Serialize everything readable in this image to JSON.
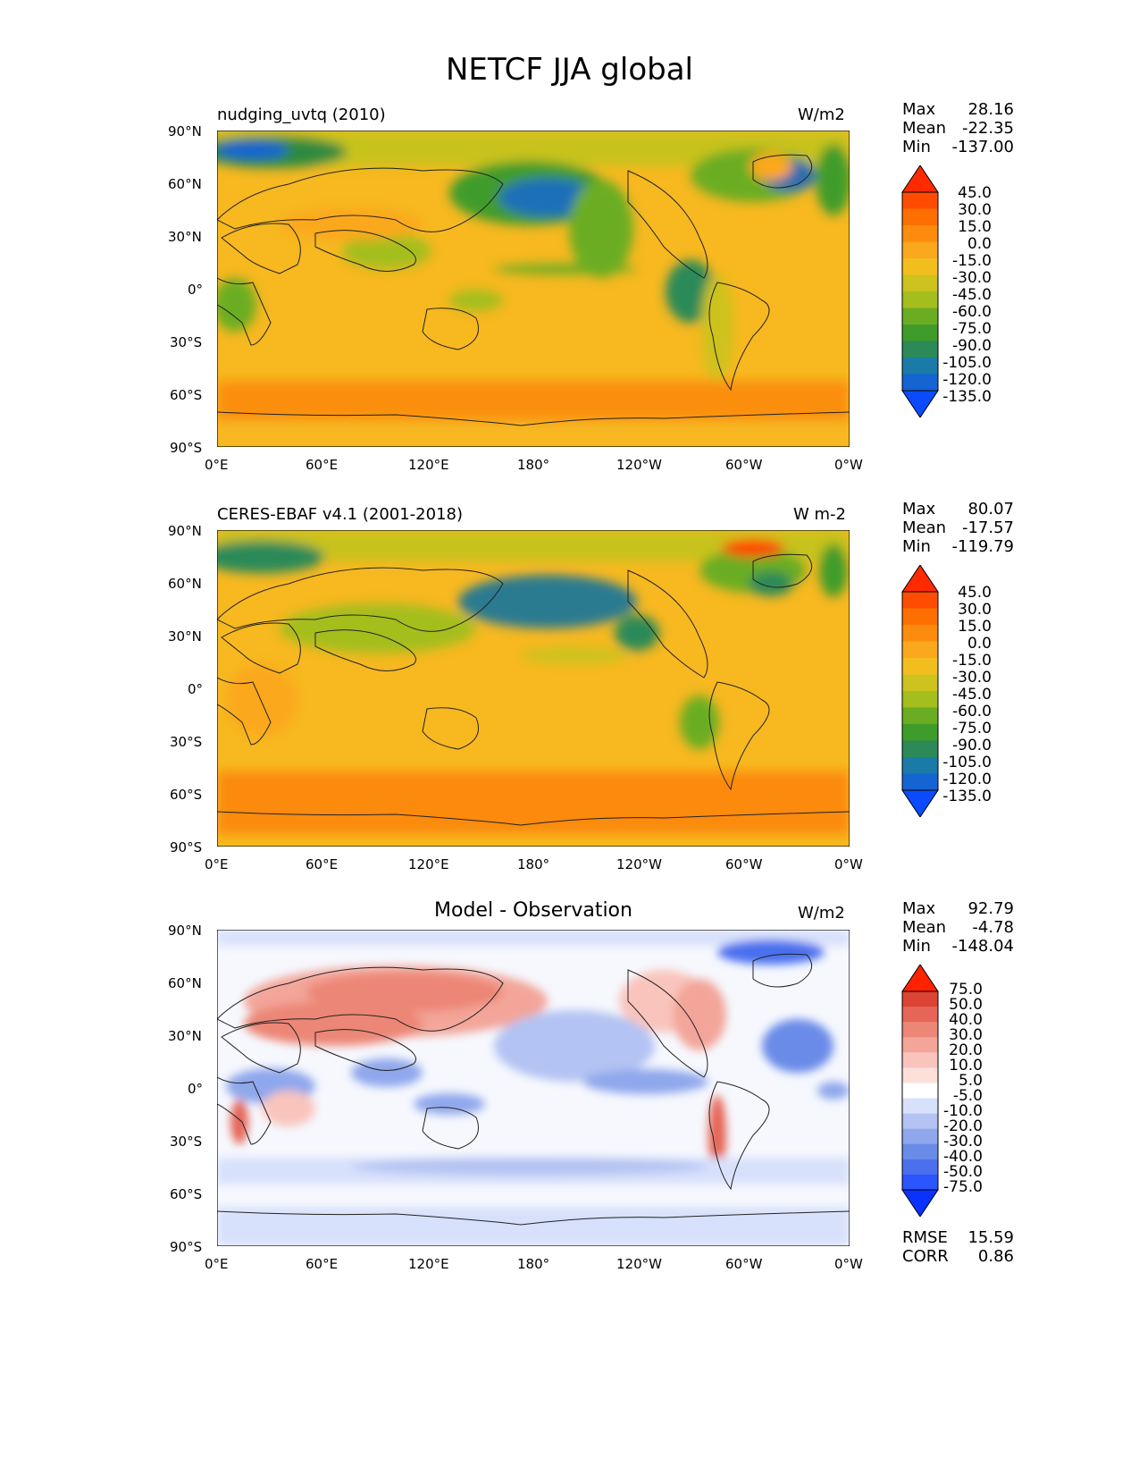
{
  "figure": {
    "title": "NETCF JJA global"
  },
  "axis_ticks": {
    "lat": [
      "90°N",
      "60°N",
      "30°N",
      "0°",
      "30°S",
      "60°S",
      "90°S"
    ],
    "lon": [
      "0°E",
      "60°E",
      "120°E",
      "180°",
      "120°W",
      "60°W",
      "0°W"
    ]
  },
  "panels": [
    {
      "left_title": "nudging_uvtq (2010)",
      "center_title": "",
      "units": "W/m2",
      "stats": {
        "max_label": "Max",
        "max": "28.16",
        "mean_label": "Mean",
        "mean": "-22.35",
        "min_label": "Min",
        "min": "-137.00"
      },
      "colorbar": {
        "labels": [
          "45.0",
          "30.0",
          "15.0",
          "0.0",
          "-15.0",
          "-30.0",
          "-45.0",
          "-60.0",
          "-75.0",
          "-90.0",
          "-105.0",
          "-120.0",
          "-135.0"
        ]
      }
    },
    {
      "left_title": "CERES-EBAF v4.1 (2001-2018)",
      "center_title": "",
      "units": "W m-2",
      "stats": {
        "max_label": "Max",
        "max": "80.07",
        "mean_label": "Mean",
        "mean": "-17.57",
        "min_label": "Min",
        "min": "-119.79"
      },
      "colorbar": {
        "labels": [
          "45.0",
          "30.0",
          "15.0",
          "0.0",
          "-15.0",
          "-30.0",
          "-45.0",
          "-60.0",
          "-75.0",
          "-90.0",
          "-105.0",
          "-120.0",
          "-135.0"
        ]
      }
    },
    {
      "left_title": "",
      "center_title": "Model - Observation",
      "units": "W/m2",
      "stats": {
        "max_label": "Max",
        "max": "92.79",
        "mean_label": "Mean",
        "mean": "-4.78",
        "min_label": "Min",
        "min": "-148.04"
      },
      "colorbar": {
        "labels": [
          "75.0",
          "50.0",
          "40.0",
          "30.0",
          "20.0",
          "10.0",
          "5.0",
          "-5.0",
          "-10.0",
          "-20.0",
          "-30.0",
          "-40.0",
          "-50.0",
          "-75.0"
        ]
      },
      "extra": {
        "rmse_label": "RMSE",
        "rmse": "15.59",
        "corr_label": "CORR",
        "corr": "0.86"
      }
    }
  ],
  "colors": {
    "field_ramp": [
      "#0a4bff",
      "#1464d2",
      "#1a7aa8",
      "#2b8a58",
      "#3f9c2a",
      "#6aad22",
      "#a4be1e",
      "#cdc21e",
      "#f2be1e",
      "#fba81e",
      "#fd8c0e",
      "#ff6e00",
      "#ff4c00",
      "#ff2a00"
    ],
    "diff_ramp": [
      "#0a32ff",
      "#2a55ff",
      "#4a70ee",
      "#6a8be8",
      "#8fa7ec",
      "#b3c3f3",
      "#d8e1fb",
      "#ffffff",
      "#fde0da",
      "#f9c4bc",
      "#f3a599",
      "#ec8676",
      "#e56556",
      "#db4433",
      "#ff2200"
    ],
    "ocean_base": "#f7b820",
    "coastline": "#222222"
  }
}
